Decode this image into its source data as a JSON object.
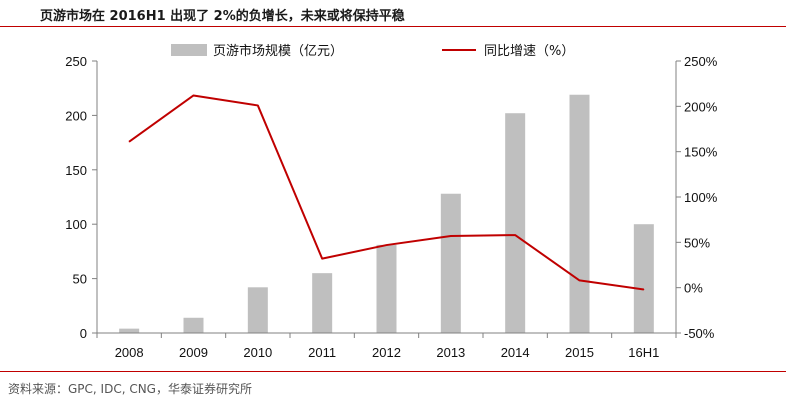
{
  "title": "页游市场在 2016H1 出现了 2%的负增长，未来或将保持平稳",
  "source": "资料来源：GPC, IDC, CNG，华泰证券研究所",
  "colors": {
    "bar": "#bfbfbf",
    "line": "#c00000",
    "rule": "#c00000"
  },
  "chart_data": {
    "type": "bar",
    "categories": [
      "2008",
      "2009",
      "2010",
      "2011",
      "2012",
      "2013",
      "2014",
      "2015",
      "16H1"
    ],
    "series": [
      {
        "name": "页游市场规模（亿元）",
        "type": "bar",
        "axis": "left",
        "values": [
          4,
          14,
          42,
          55,
          81,
          128,
          202,
          219,
          100
        ]
      },
      {
        "name": "同比增速（%）",
        "type": "line",
        "axis": "right",
        "values": [
          161,
          212,
          201,
          32,
          47,
          57,
          58,
          8,
          -2
        ]
      }
    ],
    "y_left": {
      "ylim": [
        0,
        250
      ],
      "ticks": [
        "0",
        "50",
        "100",
        "150",
        "200",
        "250"
      ]
    },
    "y_right": {
      "ylim": [
        -50,
        250
      ],
      "ticks": [
        "-50%",
        "0%",
        "50%",
        "100%",
        "150%",
        "200%",
        "250%"
      ]
    },
    "legend_placement": "top-center",
    "grid": false
  }
}
